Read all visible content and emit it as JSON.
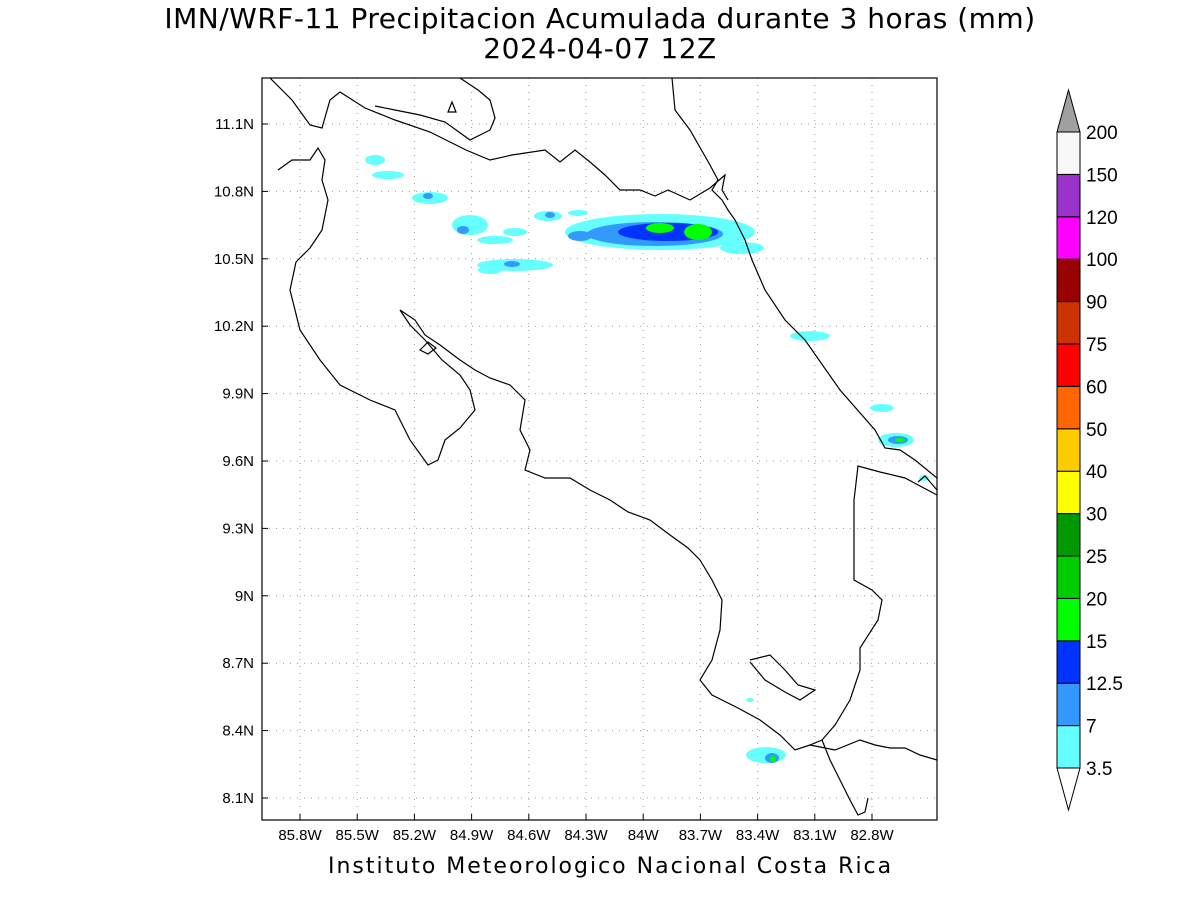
{
  "header": {
    "title": "IMN/WRF-11 Precipitacion Acumulada durante 3 horas (mm)",
    "subtitle": "2024-04-07 12Z"
  },
  "footer": {
    "text": "Instituto Meteorologico Nacional Costa Rica"
  },
  "map": {
    "lon_range": [
      -86.0,
      -83.0
    ],
    "lat_range": [
      8.0,
      11.3
    ],
    "lon_ticks": [
      "85.8W",
      "85.5W",
      "85.2W",
      "84.9W",
      "84.6W",
      "84.3W",
      "84W",
      "83.7W",
      "83.4W",
      "83.1W",
      "82.8W"
    ],
    "lat_ticks": [
      "11.1N",
      "10.8N",
      "10.5N",
      "10.2N",
      "9.9N",
      "9.6N",
      "9.3N",
      "9N",
      "8.7N",
      "8.4N",
      "8.1N"
    ],
    "grid": "dotted"
  },
  "legend": {
    "levels": [
      "3.5",
      "7",
      "12.5",
      "15",
      "20",
      "25",
      "30",
      "40",
      "50",
      "60",
      "75",
      "90",
      "100",
      "120",
      "150",
      "200"
    ],
    "colors": [
      "#66ffff",
      "#3399ff",
      "#0033ff",
      "#00ff00",
      "#00cc00",
      "#009900",
      "#ffff00",
      "#ffcc00",
      "#ff6600",
      "#ff0000",
      "#cc3300",
      "#990000",
      "#ff00ff",
      "#9933cc",
      "#f8f8f8",
      "#a0a0a0"
    ]
  }
}
